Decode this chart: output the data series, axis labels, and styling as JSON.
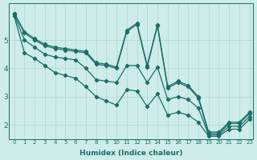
{
  "xlabel": "Humidex (Indice chaleur)",
  "xlim": [
    -0.5,
    23.3
  ],
  "ylim": [
    1.5,
    6.3
  ],
  "yticks": [
    2,
    3,
    4,
    5
  ],
  "xticks": [
    0,
    1,
    2,
    3,
    4,
    5,
    6,
    7,
    8,
    9,
    10,
    11,
    12,
    13,
    14,
    15,
    16,
    17,
    18,
    19,
    20,
    21,
    22,
    23
  ],
  "bg_color": "#ceecea",
  "line_color": "#1a6e65",
  "grid_color": "#aed6d2",
  "lines": [
    [
      5.95,
      5.3,
      5.05,
      4.85,
      4.75,
      4.7,
      4.65,
      4.6,
      4.2,
      4.15,
      4.05,
      5.35,
      5.6,
      4.1,
      5.55,
      3.35,
      3.55,
      3.4,
      3.0,
      1.75,
      1.75,
      2.1,
      2.1,
      2.45
    ],
    [
      5.95,
      5.25,
      5.0,
      4.8,
      4.7,
      4.65,
      4.6,
      4.55,
      4.15,
      4.1,
      4.0,
      5.3,
      5.55,
      4.05,
      5.5,
      3.3,
      3.5,
      3.35,
      2.95,
      1.7,
      1.7,
      2.05,
      2.05,
      2.4
    ],
    [
      5.9,
      5.0,
      4.75,
      4.5,
      4.4,
      4.35,
      4.3,
      4.0,
      3.6,
      3.55,
      3.5,
      4.1,
      4.1,
      3.5,
      4.05,
      2.9,
      3.0,
      2.9,
      2.6,
      1.65,
      1.65,
      1.95,
      1.95,
      2.3
    ],
    [
      5.85,
      4.55,
      4.35,
      4.1,
      3.85,
      3.75,
      3.65,
      3.35,
      3.0,
      2.85,
      2.7,
      3.25,
      3.2,
      2.65,
      3.1,
      2.35,
      2.45,
      2.35,
      2.1,
      1.6,
      1.6,
      1.85,
      1.85,
      2.2
    ]
  ]
}
